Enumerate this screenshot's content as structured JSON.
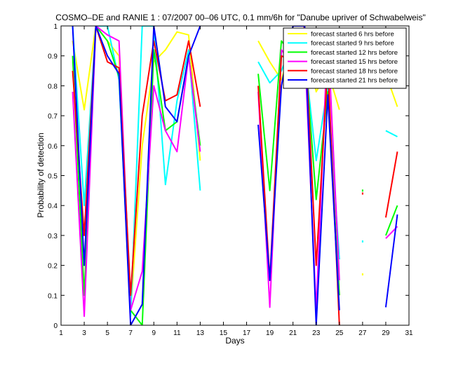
{
  "chart_data": {
    "type": "line",
    "title": "COSMO–DE and RANIE 1 : 07/2007 00–06 UTC, 0.1 mm/6h for \"Danube upriver of Schwabelweis\"",
    "xlabel": "Days",
    "ylabel": "Probability of detection",
    "xlim": [
      1,
      31
    ],
    "ylim": [
      0,
      1
    ],
    "xticks": [
      1,
      3,
      5,
      7,
      9,
      11,
      13,
      15,
      17,
      19,
      21,
      23,
      25,
      27,
      29,
      31
    ],
    "yticks": [
      0,
      0.1,
      0.2,
      0.3,
      0.4,
      0.5,
      0.6,
      0.7,
      0.8,
      0.9,
      1
    ],
    "grid": false,
    "legend_position": "top-right",
    "series": [
      {
        "name": "forecast started 6 hrs before",
        "color": "#ffff00",
        "segments": [
          [
            [
              2,
              0.95
            ],
            [
              3,
              0.72
            ],
            [
              4,
              1.0
            ],
            [
              5,
              0.95
            ],
            [
              6,
              0.9
            ],
            [
              7,
              0.05
            ],
            [
              8,
              0.6
            ],
            [
              9,
              0.88
            ],
            [
              10,
              0.92
            ],
            [
              11,
              0.98
            ],
            [
              12,
              0.97
            ],
            [
              13,
              0.55
            ]
          ],
          [
            [
              18,
              0.95
            ],
            [
              19,
              0.88
            ],
            [
              20,
              0.82
            ],
            [
              21,
              0.95
            ],
            [
              22,
              0.96
            ],
            [
              23,
              0.78
            ],
            [
              24,
              0.85
            ],
            [
              25,
              0.72
            ]
          ],
          [
            [
              29,
              0.84
            ],
            [
              30,
              0.73
            ]
          ]
        ],
        "points": [
          [
            27,
            0.17
          ]
        ]
      },
      {
        "name": "forecast started 9 hrs before",
        "color": "#00ffff",
        "segments": [
          [
            [
              2,
              1.0
            ],
            [
              3,
              0.4
            ],
            [
              4,
              1.0
            ],
            [
              5,
              1.0
            ],
            [
              6,
              0.82
            ],
            [
              7,
              0.03
            ],
            [
              8,
              1.0
            ],
            [
              9,
              1.0
            ],
            [
              10,
              0.47
            ],
            [
              11,
              0.75
            ],
            [
              12,
              0.92
            ],
            [
              13,
              0.45
            ]
          ],
          [
            [
              18,
              0.88
            ],
            [
              19,
              0.81
            ],
            [
              20,
              0.85
            ],
            [
              21,
              0.95
            ],
            [
              22,
              0.9
            ],
            [
              23,
              0.55
            ],
            [
              24,
              0.8
            ],
            [
              25,
              0.22
            ]
          ],
          [
            [
              29,
              0.65
            ],
            [
              30,
              0.63
            ]
          ]
        ],
        "points": [
          [
            27,
            0.28
          ]
        ]
      },
      {
        "name": "forecast started 12 hrs before",
        "color": "#00ff00",
        "segments": [
          [
            [
              2,
              0.9
            ],
            [
              3,
              0.1
            ],
            [
              4,
              1.0
            ],
            [
              5,
              0.95
            ],
            [
              6,
              0.83
            ],
            [
              7,
              0.05
            ],
            [
              8,
              0.0
            ],
            [
              9,
              0.92
            ],
            [
              10,
              0.65
            ],
            [
              11,
              0.68
            ],
            [
              12,
              0.9
            ],
            [
              13,
              0.6
            ]
          ],
          [
            [
              18,
              0.84
            ],
            [
              19,
              0.45
            ],
            [
              20,
              0.95
            ],
            [
              21,
              0.9
            ],
            [
              22,
              0.93
            ],
            [
              23,
              0.42
            ],
            [
              24,
              0.78
            ],
            [
              25,
              0.1
            ]
          ],
          [
            [
              29,
              0.3
            ],
            [
              30,
              0.4
            ]
          ]
        ],
        "points": [
          [
            27,
            0.45
          ]
        ]
      },
      {
        "name": "forecast started 15 hrs before",
        "color": "#ff00ff",
        "segments": [
          [
            [
              2,
              0.78
            ],
            [
              3,
              0.03
            ],
            [
              4,
              1.0
            ],
            [
              5,
              0.97
            ],
            [
              6,
              0.95
            ],
            [
              7,
              0.05
            ],
            [
              8,
              0.18
            ],
            [
              9,
              0.8
            ],
            [
              10,
              0.65
            ],
            [
              11,
              0.58
            ],
            [
              12,
              0.9
            ],
            [
              13,
              0.58
            ]
          ],
          [
            [
              18,
              0.78
            ],
            [
              19,
              0.06
            ],
            [
              20,
              0.92
            ],
            [
              21,
              0.87
            ],
            [
              22,
              0.93
            ],
            [
              23,
              0.05
            ],
            [
              24,
              0.98
            ],
            [
              25,
              0.15
            ]
          ],
          [
            [
              29,
              0.29
            ],
            [
              30,
              0.33
            ]
          ]
        ],
        "points": [
          [
            27,
            0.83
          ]
        ]
      },
      {
        "name": "forecast started 18 hrs before",
        "color": "#ff0000",
        "segments": [
          [
            [
              2,
              0.85
            ],
            [
              3,
              0.3
            ],
            [
              4,
              1.0
            ],
            [
              5,
              0.88
            ],
            [
              6,
              0.86
            ],
            [
              7,
              0.1
            ],
            [
              8,
              0.7
            ],
            [
              9,
              0.95
            ],
            [
              10,
              0.75
            ],
            [
              11,
              0.77
            ],
            [
              12,
              0.95
            ],
            [
              13,
              0.73
            ]
          ],
          [
            [
              18,
              0.8
            ],
            [
              19,
              0.15
            ],
            [
              20,
              0.9
            ],
            [
              21,
              0.88
            ],
            [
              22,
              1.0
            ],
            [
              23,
              0.2
            ],
            [
              24,
              0.87
            ],
            [
              25,
              0.0
            ]
          ],
          [
            [
              29,
              0.36
            ],
            [
              30,
              0.58
            ]
          ]
        ],
        "points": [
          [
            27,
            0.44
          ]
        ]
      },
      {
        "name": "forecast started 21 hrs before",
        "color": "#0000ff",
        "segments": [
          [
            [
              2,
              1.0
            ],
            [
              3,
              0.2
            ],
            [
              4,
              1.0
            ],
            [
              5,
              0.9
            ],
            [
              6,
              0.84
            ],
            [
              7,
              0.0
            ],
            [
              8,
              0.07
            ],
            [
              9,
              1.0
            ],
            [
              10,
              0.73
            ],
            [
              11,
              0.68
            ],
            [
              12,
              0.9
            ],
            [
              13,
              1.0
            ]
          ],
          [
            [
              18,
              0.67
            ],
            [
              19,
              0.15
            ],
            [
              20,
              0.8
            ],
            [
              21,
              1.0
            ],
            [
              22,
              1.0
            ],
            [
              23,
              0.0
            ],
            [
              24,
              0.77
            ],
            [
              25,
              0.05
            ]
          ],
          [
            [
              29,
              0.06
            ],
            [
              30,
              0.37
            ]
          ]
        ],
        "points": []
      }
    ]
  }
}
